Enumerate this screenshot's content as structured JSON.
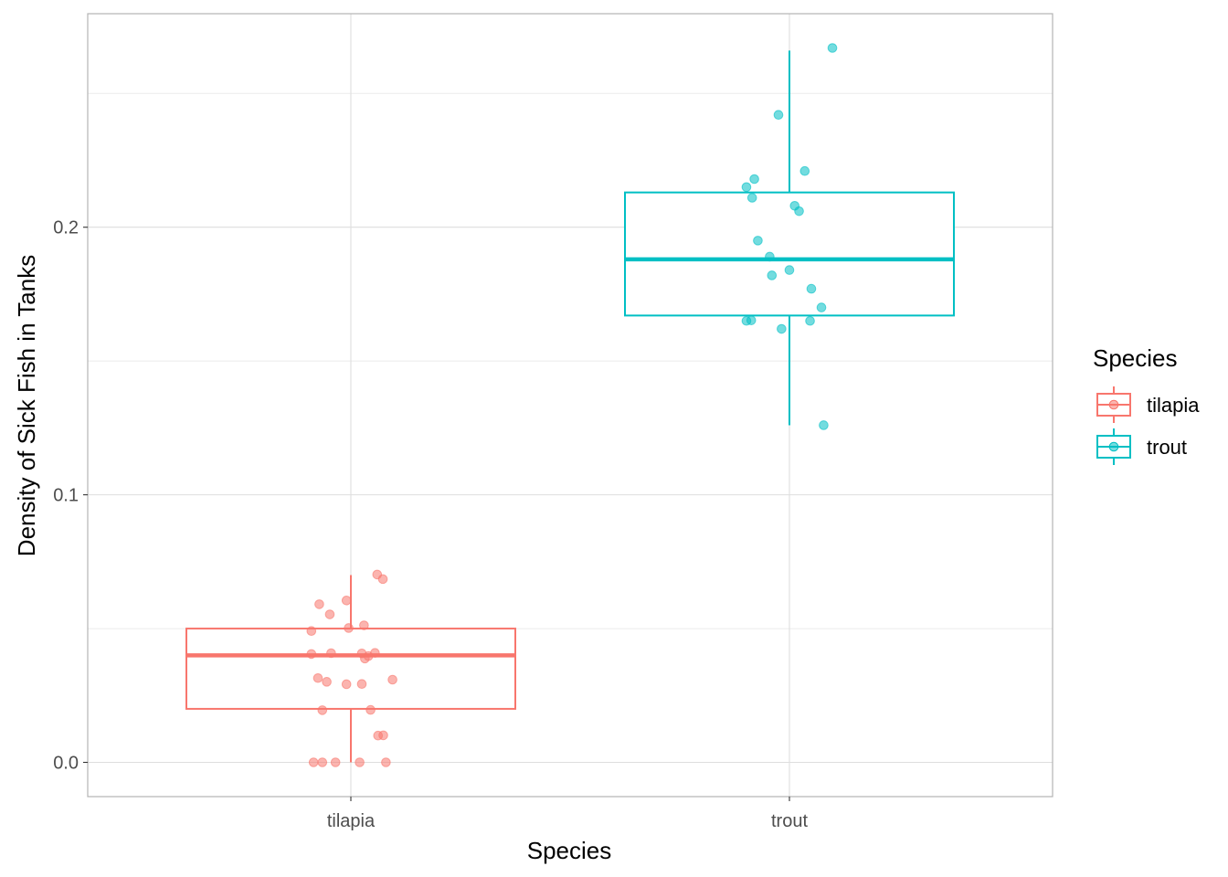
{
  "chart_data": {
    "type": "boxplot",
    "xlabel": "Species",
    "ylabel": "Density of Sick Fish in Tanks",
    "categories": [
      "tilapia",
      "trout"
    ],
    "ylim": [
      -0.0128,
      0.2798
    ],
    "yticks": [
      0.0,
      0.1,
      0.2
    ],
    "ytick_labels": [
      "0.0",
      "0.1",
      "0.2"
    ],
    "grid": true,
    "legend": {
      "title": "Species",
      "position": "right",
      "entries": [
        "tilapia",
        "trout"
      ]
    },
    "colors": {
      "tilapia": "#F8766D",
      "trout": "#00BFC4"
    },
    "series": [
      {
        "name": "tilapia",
        "box": {
          "lower_whisker": 0.0,
          "q1": 0.02,
          "median": 0.04,
          "q3": 0.05,
          "upper_whisker": 0.07
        },
        "points": [
          {
            "jitter": -0.085,
            "y": 0.0
          },
          {
            "jitter": -0.065,
            "y": 0.0
          },
          {
            "jitter": -0.035,
            "y": 0.0
          },
          {
            "jitter": 0.02,
            "y": 0.0
          },
          {
            "jitter": 0.08,
            "y": 0.0
          },
          {
            "jitter": 0.062,
            "y": 0.01
          },
          {
            "jitter": 0.074,
            "y": 0.0101
          },
          {
            "jitter": -0.065,
            "y": 0.0195
          },
          {
            "jitter": 0.045,
            "y": 0.0196
          },
          {
            "jitter": -0.075,
            "y": 0.0315
          },
          {
            "jitter": -0.055,
            "y": 0.0301
          },
          {
            "jitter": -0.01,
            "y": 0.0292
          },
          {
            "jitter": 0.025,
            "y": 0.0293
          },
          {
            "jitter": 0.095,
            "y": 0.0309
          },
          {
            "jitter": -0.09,
            "y": 0.0405
          },
          {
            "jitter": -0.045,
            "y": 0.0408
          },
          {
            "jitter": 0.025,
            "y": 0.0407
          },
          {
            "jitter": 0.032,
            "y": 0.0388
          },
          {
            "jitter": 0.04,
            "y": 0.0397
          },
          {
            "jitter": 0.055,
            "y": 0.0409
          },
          {
            "jitter": -0.09,
            "y": 0.0491
          },
          {
            "jitter": -0.005,
            "y": 0.0502
          },
          {
            "jitter": 0.03,
            "y": 0.0512
          },
          {
            "jitter": -0.048,
            "y": 0.0553
          },
          {
            "jitter": -0.072,
            "y": 0.0591
          },
          {
            "jitter": -0.01,
            "y": 0.0605
          },
          {
            "jitter": 0.06,
            "y": 0.0702
          },
          {
            "jitter": 0.073,
            "y": 0.0685
          }
        ]
      },
      {
        "name": "trout",
        "box": {
          "lower_whisker": 0.126,
          "q1": 0.167,
          "median": 0.188,
          "q3": 0.213,
          "upper_whisker": 0.266
        },
        "points": [
          {
            "jitter": 0.078,
            "y": 0.126
          },
          {
            "jitter": -0.098,
            "y": 0.165
          },
          {
            "jitter": -0.087,
            "y": 0.1652
          },
          {
            "jitter": -0.018,
            "y": 0.162
          },
          {
            "jitter": 0.047,
            "y": 0.165
          },
          {
            "jitter": 0.073,
            "y": 0.17
          },
          {
            "jitter": 0.05,
            "y": 0.177
          },
          {
            "jitter": -0.04,
            "y": 0.182
          },
          {
            "jitter": 0.0,
            "y": 0.184
          },
          {
            "jitter": -0.045,
            "y": 0.189
          },
          {
            "jitter": -0.072,
            "y": 0.195
          },
          {
            "jitter": 0.012,
            "y": 0.208
          },
          {
            "jitter": 0.022,
            "y": 0.206
          },
          {
            "jitter": -0.085,
            "y": 0.211
          },
          {
            "jitter": -0.098,
            "y": 0.215
          },
          {
            "jitter": -0.08,
            "y": 0.218
          },
          {
            "jitter": 0.035,
            "y": 0.221
          },
          {
            "jitter": -0.025,
            "y": 0.242
          },
          {
            "jitter": 0.098,
            "y": 0.267
          }
        ]
      }
    ]
  }
}
